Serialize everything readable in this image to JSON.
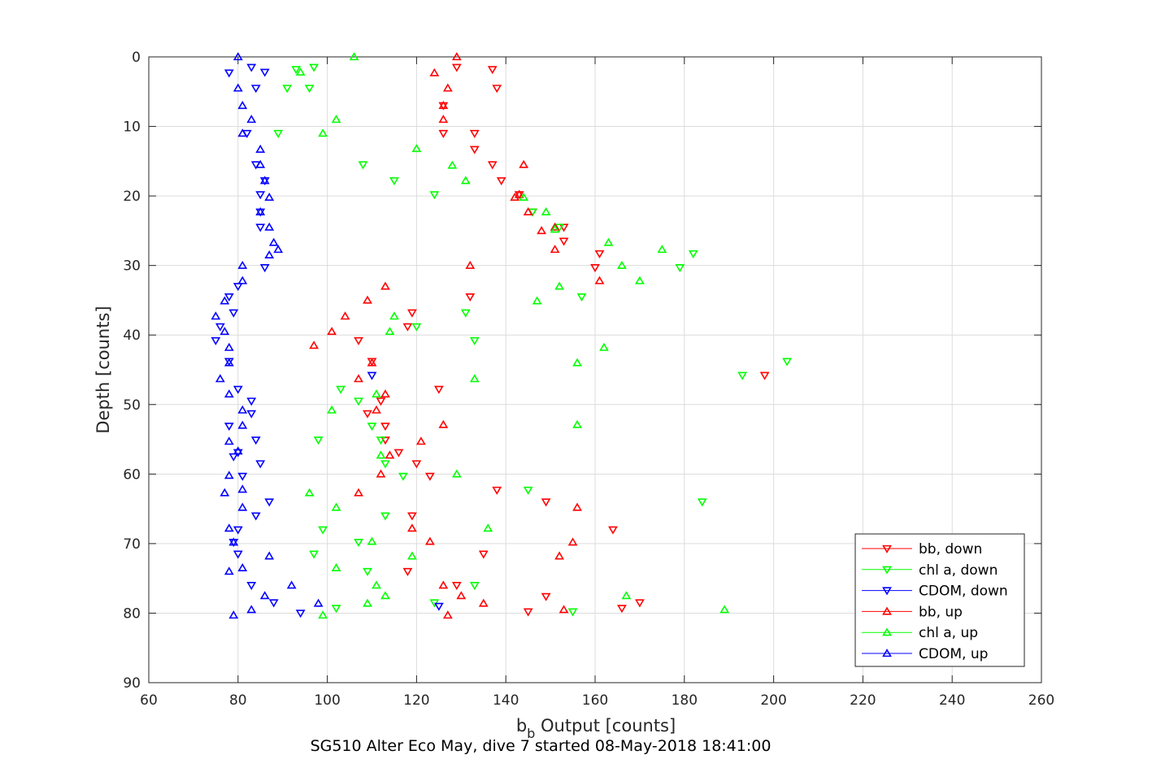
{
  "chart_data": {
    "type": "scatter",
    "title": "",
    "xlabel_main": "b",
    "xlabel_sub": "b",
    "xlabel_rest": " Output [counts]",
    "ylabel": "Depth [counts]",
    "caption": "SG510 Alter Eco May, dive 7 started 08-May-2018 18:41:00",
    "xlim": [
      60,
      260
    ],
    "ylim": [
      0,
      90
    ],
    "y_reversed": true,
    "xticks": [
      60,
      80,
      100,
      120,
      140,
      160,
      180,
      200,
      220,
      240,
      260
    ],
    "yticks": [
      0,
      10,
      20,
      30,
      40,
      50,
      60,
      70,
      80,
      90
    ],
    "grid": true,
    "legend_position": "bottom-right",
    "series": [
      {
        "name": "bb, down",
        "color": "#ff0000",
        "marker": "triangle-down",
        "points": [
          [
            129,
            1.5
          ],
          [
            137,
            1.8
          ],
          [
            138,
            4.5
          ],
          [
            126,
            7
          ],
          [
            126,
            11
          ],
          [
            133,
            11
          ],
          [
            133,
            13.3
          ],
          [
            137,
            15.5
          ],
          [
            139,
            17.8
          ],
          [
            143,
            19.8
          ],
          [
            146,
            22.3
          ],
          [
            153,
            24.5
          ],
          [
            153,
            26.5
          ],
          [
            161,
            28.3
          ],
          [
            160,
            30.3
          ],
          [
            132,
            34.5
          ],
          [
            119,
            36.8
          ],
          [
            118,
            38.8
          ],
          [
            107,
            40.8
          ],
          [
            110,
            43.8
          ],
          [
            198,
            45.8
          ],
          [
            125,
            47.8
          ],
          [
            112,
            49.5
          ],
          [
            109,
            51.3
          ],
          [
            113,
            53.1
          ],
          [
            113,
            55.1
          ],
          [
            116,
            56.9
          ],
          [
            120,
            58.5
          ],
          [
            123,
            60.3
          ],
          [
            138,
            62.3
          ],
          [
            149,
            64
          ],
          [
            119,
            66
          ],
          [
            164,
            68
          ],
          [
            135,
            71.5
          ],
          [
            118,
            74
          ],
          [
            129,
            76
          ],
          [
            149,
            77.6
          ],
          [
            170,
            78.5
          ],
          [
            166,
            79.3
          ],
          [
            145,
            79.8
          ]
        ]
      },
      {
        "name": "chl a, down",
        "color": "#00ff00",
        "marker": "triangle-down",
        "points": [
          [
            93,
            1.8
          ],
          [
            97,
            1.5
          ],
          [
            91,
            4.5
          ],
          [
            96,
            4.5
          ],
          [
            89,
            11
          ],
          [
            108,
            15.5
          ],
          [
            115,
            17.8
          ],
          [
            124,
            19.8
          ],
          [
            146,
            22.3
          ],
          [
            152,
            24.5
          ],
          [
            182,
            28.3
          ],
          [
            179,
            30.3
          ],
          [
            157,
            34.5
          ],
          [
            131,
            36.8
          ],
          [
            120,
            38.8
          ],
          [
            133,
            40.8
          ],
          [
            203,
            43.8
          ],
          [
            193,
            45.8
          ],
          [
            103,
            47.8
          ],
          [
            107,
            49.5
          ],
          [
            110,
            53.1
          ],
          [
            98,
            55.1
          ],
          [
            112,
            55.1
          ],
          [
            113,
            58.5
          ],
          [
            117,
            60.3
          ],
          [
            145,
            62.3
          ],
          [
            184,
            64
          ],
          [
            113,
            66
          ],
          [
            99,
            68
          ],
          [
            107,
            69.8
          ],
          [
            97,
            71.5
          ],
          [
            109,
            74
          ],
          [
            133,
            76
          ],
          [
            124,
            78.5
          ],
          [
            102,
            79.3
          ],
          [
            155,
            79.8
          ]
        ]
      },
      {
        "name": "CDOM, down",
        "color": "#0000ff",
        "marker": "triangle-down",
        "points": [
          [
            83,
            1.5
          ],
          [
            86,
            2.2
          ],
          [
            78,
            2.3
          ],
          [
            84,
            4.5
          ],
          [
            82,
            11
          ],
          [
            84,
            15.5
          ],
          [
            86,
            17.8
          ],
          [
            85,
            19.8
          ],
          [
            85,
            22.3
          ],
          [
            85,
            24.5
          ],
          [
            86,
            30.3
          ],
          [
            80,
            33
          ],
          [
            78,
            34.5
          ],
          [
            79,
            36.8
          ],
          [
            76,
            38.8
          ],
          [
            75,
            40.8
          ],
          [
            78,
            43.8
          ],
          [
            110,
            45.8
          ],
          [
            80,
            47.8
          ],
          [
            83,
            49.5
          ],
          [
            83,
            51.3
          ],
          [
            78,
            53.1
          ],
          [
            84,
            55.1
          ],
          [
            80,
            56.9
          ],
          [
            79,
            57.5
          ],
          [
            85,
            58.5
          ],
          [
            81,
            60.3
          ],
          [
            87,
            64
          ],
          [
            84,
            66
          ],
          [
            80,
            68
          ],
          [
            79,
            69.8
          ],
          [
            80,
            71.5
          ],
          [
            83,
            76
          ],
          [
            88,
            78.5
          ],
          [
            94,
            80
          ],
          [
            125,
            79
          ]
        ]
      },
      {
        "name": "bb, up",
        "color": "#ff0000",
        "marker": "triangle-up",
        "points": [
          [
            129,
            0
          ],
          [
            124,
            2.3
          ],
          [
            127,
            4.5
          ],
          [
            126,
            7
          ],
          [
            126,
            9
          ],
          [
            144,
            15.5
          ],
          [
            142,
            20.2
          ],
          [
            143,
            19.8
          ],
          [
            145,
            22.3
          ],
          [
            151,
            24.5
          ],
          [
            148,
            25
          ],
          [
            151,
            27.7
          ],
          [
            132,
            30
          ],
          [
            161,
            32.2
          ],
          [
            113,
            33
          ],
          [
            109,
            35
          ],
          [
            104,
            37.3
          ],
          [
            101,
            39.5
          ],
          [
            97,
            41.5
          ],
          [
            110,
            44
          ],
          [
            107,
            46.3
          ],
          [
            113,
            48.5
          ],
          [
            111,
            50.8
          ],
          [
            126,
            52.9
          ],
          [
            121,
            55.3
          ],
          [
            114,
            57.3
          ],
          [
            112,
            60
          ],
          [
            107,
            62.7
          ],
          [
            156,
            64.8
          ],
          [
            119,
            67.8
          ],
          [
            123,
            69.7
          ],
          [
            155,
            69.8
          ],
          [
            152,
            71.8
          ],
          [
            126,
            76
          ],
          [
            130,
            77.5
          ],
          [
            135,
            78.6
          ],
          [
            153,
            79.5
          ],
          [
            127,
            80.3
          ]
        ]
      },
      {
        "name": "chl a, up",
        "color": "#00ff00",
        "marker": "triangle-up",
        "points": [
          [
            106,
            0
          ],
          [
            94,
            2.2
          ],
          [
            102,
            9
          ],
          [
            99,
            11
          ],
          [
            120,
            13.2
          ],
          [
            128,
            15.6
          ],
          [
            131,
            17.8
          ],
          [
            144,
            20.2
          ],
          [
            149,
            22.3
          ],
          [
            151,
            24.8
          ],
          [
            163,
            26.7
          ],
          [
            175,
            27.7
          ],
          [
            166,
            30
          ],
          [
            170,
            32.2
          ],
          [
            152,
            33
          ],
          [
            147,
            35.1
          ],
          [
            115,
            37.3
          ],
          [
            114,
            39.5
          ],
          [
            162,
            41.8
          ],
          [
            156,
            44
          ],
          [
            133,
            46.3
          ],
          [
            111,
            48.5
          ],
          [
            101,
            50.8
          ],
          [
            156,
            52.9
          ],
          [
            129,
            60
          ],
          [
            96,
            62.7
          ],
          [
            102,
            64.8
          ],
          [
            136,
            67.8
          ],
          [
            110,
            69.7
          ],
          [
            119,
            71.8
          ],
          [
            102,
            73.5
          ],
          [
            111,
            76
          ],
          [
            113,
            77.5
          ],
          [
            167,
            77.5
          ],
          [
            109,
            78.6
          ],
          [
            189,
            79.5
          ],
          [
            99,
            80.3
          ],
          [
            112,
            57.3
          ]
        ]
      },
      {
        "name": "CDOM, up",
        "color": "#0000ff",
        "marker": "triangle-up",
        "points": [
          [
            80,
            0
          ],
          [
            80,
            4.5
          ],
          [
            81,
            7
          ],
          [
            83,
            9
          ],
          [
            81,
            11
          ],
          [
            85,
            13.3
          ],
          [
            85,
            15.5
          ],
          [
            86,
            17.8
          ],
          [
            87,
            20.2
          ],
          [
            85,
            22.3
          ],
          [
            87,
            24.5
          ],
          [
            88,
            26.7
          ],
          [
            89,
            27.7
          ],
          [
            87,
            28.5
          ],
          [
            81,
            30
          ],
          [
            81,
            32.2
          ],
          [
            77,
            35.1
          ],
          [
            75,
            37.3
          ],
          [
            77,
            39.5
          ],
          [
            78,
            41.8
          ],
          [
            78,
            44
          ],
          [
            76,
            46.3
          ],
          [
            78,
            48.5
          ],
          [
            81,
            50.8
          ],
          [
            81,
            53
          ],
          [
            78,
            55.3
          ],
          [
            80,
            56.7
          ],
          [
            78,
            60.2
          ],
          [
            77,
            62.7
          ],
          [
            81,
            62.2
          ],
          [
            81,
            64.8
          ],
          [
            78,
            67.8
          ],
          [
            79,
            69.8
          ],
          [
            87,
            71.8
          ],
          [
            81,
            73.5
          ],
          [
            78,
            74
          ],
          [
            92,
            76
          ],
          [
            86,
            77.5
          ],
          [
            98,
            78.6
          ],
          [
            83,
            79.5
          ],
          [
            79,
            80.3
          ]
        ]
      }
    ]
  }
}
